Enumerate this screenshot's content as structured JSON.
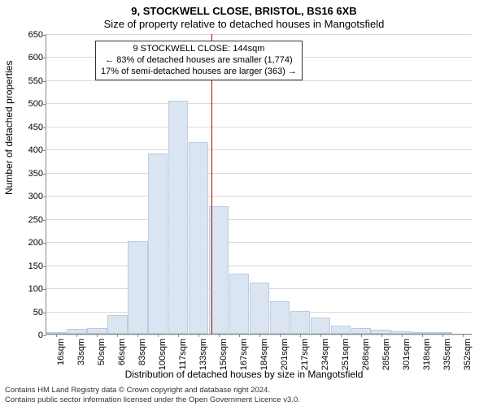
{
  "title_line1": "9, STOCKWELL CLOSE, BRISTOL, BS16 6XB",
  "title_line2": "Size of property relative to detached houses in Mangotsfield",
  "ylabel": "Number of detached properties",
  "xlabel": "Distribution of detached houses by size in Mangotsfield",
  "footer_line1": "Contains HM Land Registry data © Crown copyright and database right 2024.",
  "footer_line2": "Contains public sector information licensed under the Open Government Licence v3.0.",
  "annotation": {
    "line1": "9 STOCKWELL CLOSE: 144sqm",
    "line2": "← 83% of detached houses are smaller (1,774)",
    "line3": "17% of semi-detached houses are larger (363) →"
  },
  "chart": {
    "type": "histogram",
    "ylim": [
      0,
      650
    ],
    "ytick_step": 50,
    "x_tick_labels": [
      "16sqm",
      "33sqm",
      "50sqm",
      "66sqm",
      "83sqm",
      "100sqm",
      "117sqm",
      "133sqm",
      "150sqm",
      "167sqm",
      "184sqm",
      "201sqm",
      "217sqm",
      "234sqm",
      "251sqm",
      "268sqm",
      "285sqm",
      "301sqm",
      "318sqm",
      "335sqm",
      "352sqm"
    ],
    "values": [
      2,
      10,
      12,
      40,
      200,
      390,
      505,
      415,
      275,
      130,
      110,
      70,
      50,
      35,
      18,
      12,
      8,
      6,
      3,
      2,
      0
    ],
    "bar_fill": "#dbe5f1",
    "bar_stroke": "#b8cce4",
    "ref_value_x": 144,
    "ref_color": "#c00000",
    "grid_color": "#d9d9d9",
    "plot_bg": "#ffffff"
  }
}
